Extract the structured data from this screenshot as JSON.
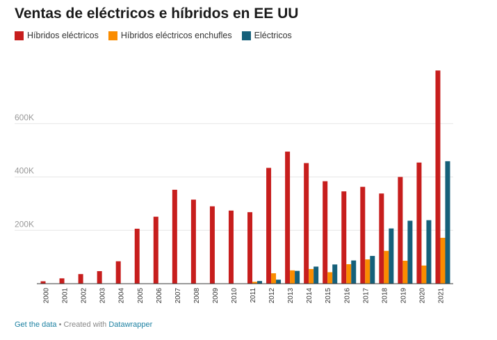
{
  "header": {
    "title": "Ventas de eléctricos e híbridos en EE UU"
  },
  "legend": [
    {
      "label": "Híbridos eléctricos",
      "color": "#c71e1d"
    },
    {
      "label": "Híbridos eléctricos enchufles",
      "color": "#fa8c00"
    },
    {
      "label": "Eléctricos",
      "color": "#15607a"
    }
  ],
  "footer": {
    "get_data": "Get the data",
    "separator": " • Created with ",
    "tool": "Datawrapper"
  },
  "chart_data": {
    "type": "bar",
    "title": "Ventas de eléctricos e híbridos en EE UU",
    "xlabel": "",
    "ylabel": "",
    "ylim": [
      0,
      800000
    ],
    "yticks": [
      200000,
      400000,
      600000
    ],
    "ytick_labels": [
      "200K",
      "400K",
      "600K"
    ],
    "grid": true,
    "legend_position": "top-left",
    "categories": [
      "2000",
      "2001",
      "2002",
      "2003",
      "2004",
      "2005",
      "2006",
      "2007",
      "2008",
      "2009",
      "2010",
      "2011",
      "2012",
      "2013",
      "2014",
      "2015",
      "2016",
      "2017",
      "2018",
      "2019",
      "2020",
      "2021"
    ],
    "series": [
      {
        "name": "Híbridos eléctricos",
        "color": "#c71e1d",
        "values": [
          9000,
          20000,
          36000,
          47000,
          84000,
          206000,
          251000,
          352000,
          315000,
          290000,
          274000,
          268000,
          434000,
          495000,
          452000,
          384000,
          346000,
          363000,
          338000,
          400000,
          454000,
          799000
        ]
      },
      {
        "name": "Híbridos eléctricos enchufles",
        "color": "#fa8c00",
        "values": [
          0,
          0,
          0,
          0,
          0,
          0,
          0,
          0,
          0,
          0,
          0,
          7000,
          39000,
          50000,
          55000,
          43000,
          73000,
          91000,
          123000,
          86000,
          68000,
          172000
        ]
      },
      {
        "name": "Eléctricos",
        "color": "#15607a",
        "values": [
          0,
          0,
          0,
          0,
          0,
          0,
          0,
          0,
          0,
          0,
          0,
          10000,
          15000,
          48000,
          64000,
          72000,
          87000,
          104000,
          207000,
          236000,
          238000,
          459000
        ]
      }
    ]
  }
}
